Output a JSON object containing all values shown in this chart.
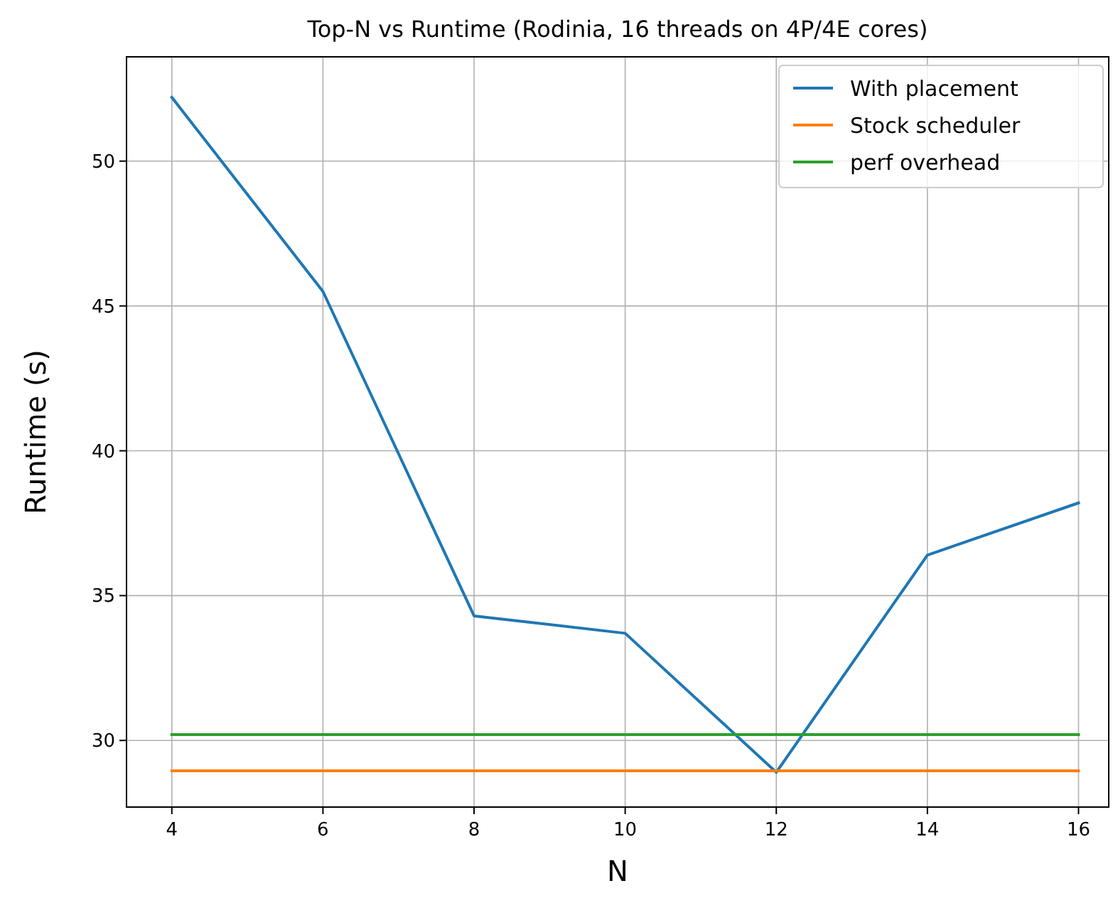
{
  "chart_data": {
    "type": "line",
    "title": "Top-N vs Runtime (Rodinia, 16 threads on 4P/4E cores)",
    "xlabel": "N",
    "ylabel": "Runtime (s)",
    "x": [
      4,
      6,
      8,
      10,
      12,
      14,
      16
    ],
    "series": [
      {
        "name": "With placement",
        "color": "#1f77b4",
        "values": [
          52.2,
          45.5,
          34.3,
          33.7,
          28.9,
          36.4,
          38.2
        ]
      },
      {
        "name": "Stock scheduler",
        "color": "#ff7f0e",
        "values": [
          28.95,
          28.95,
          28.95,
          28.95,
          28.95,
          28.95,
          28.95
        ]
      },
      {
        "name": "perf overhead",
        "color": "#2ca02c",
        "values": [
          30.2,
          30.2,
          30.2,
          30.2,
          30.2,
          30.2,
          30.2
        ]
      }
    ],
    "xlim": [
      3.4,
      16.4
    ],
    "xticks": [
      4,
      6,
      8,
      10,
      12,
      14,
      16
    ],
    "ylim": [
      27.7,
      53.6
    ],
    "yticks": [
      30,
      35,
      40,
      45,
      50
    ],
    "grid": true,
    "legend": "top right",
    "marker": "none",
    "line_style": "solid"
  }
}
